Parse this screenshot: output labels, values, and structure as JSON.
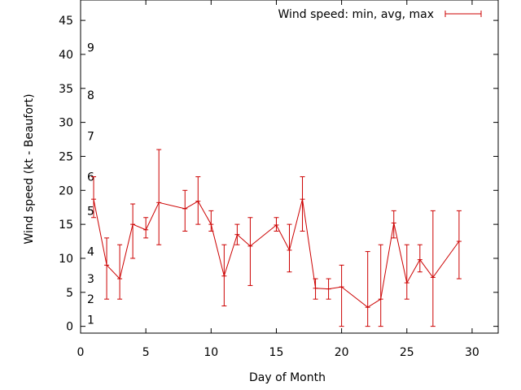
{
  "chart_data": {
    "type": "line",
    "title": "",
    "xlabel": "Day of Month",
    "ylabel": "Wind speed (kt - Beaufort)",
    "xlim": [
      0,
      32
    ],
    "ylim": [
      -1,
      48
    ],
    "x_ticks": [
      0,
      5,
      10,
      15,
      20,
      25,
      30
    ],
    "y_ticks": [
      0,
      5,
      10,
      15,
      20,
      25,
      30,
      35,
      40,
      45
    ],
    "grid": false,
    "legend_position": "top-right",
    "series_color": "#cc0000",
    "series": [
      {
        "name": "Wind speed: min, avg, max",
        "style": "line with min/max error bars",
        "points": [
          {
            "x": 1,
            "y": 18.7,
            "min": 16,
            "max": 22
          },
          {
            "x": 2,
            "y": 9,
            "min": 4,
            "max": 13
          },
          {
            "x": 3,
            "y": 7,
            "min": 4,
            "max": 12
          },
          {
            "x": 4,
            "y": 15,
            "min": 10,
            "max": 18
          },
          {
            "x": 5,
            "y": 14.2,
            "min": 13,
            "max": 16
          },
          {
            "x": 6,
            "y": 18.2,
            "min": 12,
            "max": 26
          },
          {
            "x": 8,
            "y": 17.3,
            "min": 14,
            "max": 20
          },
          {
            "x": 9,
            "y": 18.4,
            "min": 15,
            "max": 22
          },
          {
            "x": 10,
            "y": 15,
            "min": 14,
            "max": 17
          },
          {
            "x": 11,
            "y": 7.4,
            "min": 3,
            "max": 12
          },
          {
            "x": 12,
            "y": 13.5,
            "min": 12,
            "max": 15
          },
          {
            "x": 13,
            "y": 11.8,
            "min": 6,
            "max": 16
          },
          {
            "x": 15,
            "y": 14.9,
            "min": 14,
            "max": 16
          },
          {
            "x": 16,
            "y": 11.2,
            "min": 8,
            "max": 15
          },
          {
            "x": 17,
            "y": 18.7,
            "min": 14,
            "max": 22
          },
          {
            "x": 18,
            "y": 5.6,
            "min": 4,
            "max": 7
          },
          {
            "x": 19,
            "y": 5.5,
            "min": 4,
            "max": 7
          },
          {
            "x": 20,
            "y": 5.8,
            "min": 0,
            "max": 9
          },
          {
            "x": 22,
            "y": 2.8,
            "min": 0,
            "max": 11
          },
          {
            "x": 23,
            "y": 4,
            "min": 0,
            "max": 12
          },
          {
            "x": 24,
            "y": 15.2,
            "min": 13,
            "max": 17
          },
          {
            "x": 25,
            "y": 6.4,
            "min": 4,
            "max": 12
          },
          {
            "x": 26,
            "y": 9.8,
            "min": 8,
            "max": 12
          },
          {
            "x": 27,
            "y": 7.2,
            "min": 0,
            "max": 17
          },
          {
            "x": 29,
            "y": 12.5,
            "min": 7,
            "max": 17
          }
        ]
      }
    ],
    "beaufort_labels": [
      {
        "label": "1",
        "y": 1
      },
      {
        "label": "2",
        "y": 4
      },
      {
        "label": "3",
        "y": 7
      },
      {
        "label": "4",
        "y": 11
      },
      {
        "label": "5",
        "y": 17
      },
      {
        "label": "6",
        "y": 22
      },
      {
        "label": "7",
        "y": 28
      },
      {
        "label": "8",
        "y": 34
      },
      {
        "label": "9",
        "y": 41
      }
    ]
  }
}
